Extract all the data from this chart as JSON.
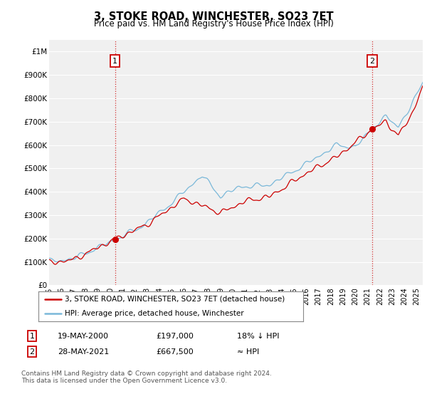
{
  "title": "3, STOKE ROAD, WINCHESTER, SO23 7ET",
  "subtitle": "Price paid vs. HM Land Registry's House Price Index (HPI)",
  "ylim": [
    0,
    1050000
  ],
  "yticks": [
    0,
    100000,
    200000,
    300000,
    400000,
    500000,
    600000,
    700000,
    800000,
    900000,
    1000000
  ],
  "ytick_labels": [
    "£0",
    "£100K",
    "£200K",
    "£300K",
    "£400K",
    "£500K",
    "£600K",
    "£700K",
    "£800K",
    "£900K",
    "£1M"
  ],
  "hpi_color": "#7ab8d9",
  "price_color": "#cc0000",
  "marker_color": "#cc0000",
  "annotation1_date": "19-MAY-2000",
  "annotation1_price": "£197,000",
  "annotation1_hpi": "18% ↓ HPI",
  "annotation2_date": "28-MAY-2021",
  "annotation2_price": "£667,500",
  "annotation2_hpi": "≈ HPI",
  "legend_line1": "3, STOKE ROAD, WINCHESTER, SO23 7ET (detached house)",
  "legend_line2": "HPI: Average price, detached house, Winchester",
  "footer": "Contains HM Land Registry data © Crown copyright and database right 2024.\nThis data is licensed under the Open Government Licence v3.0.",
  "background_color": "#ffffff",
  "plot_bg_color": "#f0f0f0",
  "grid_color": "#ffffff",
  "price_date1": 2000.375,
  "price_date2": 2021.375,
  "price_val1": 197000,
  "price_val2": 667500,
  "xlim_start": 1995,
  "xlim_end": 2025.5
}
